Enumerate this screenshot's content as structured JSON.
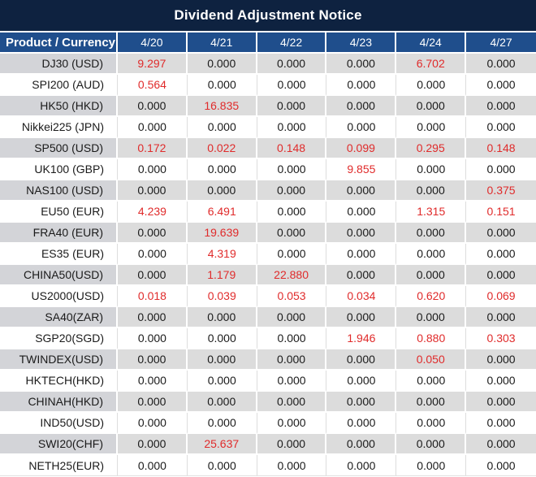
{
  "title": "Dividend Adjustment Notice",
  "colors": {
    "title_bar_bg": "#0e2240",
    "header_bg": "#1f4e8c",
    "header_text": "#ffffff",
    "alt_row_bg": "#dcdcdc",
    "alt_row_label_bg": "#d3d4d8",
    "white_row_bg": "#ffffff",
    "value_text": "#1a1a1a",
    "dividend_red": "#e02b2b",
    "gridline": "#dddddd"
  },
  "table": {
    "header": {
      "product_col": "Product / Currency",
      "dates": [
        "4/20",
        "4/21",
        "4/22",
        "4/23",
        "4/24",
        "4/27"
      ]
    },
    "zero_value": "0.000",
    "rows": [
      {
        "product": "DJ30 (USD)",
        "values": [
          "9.297",
          "0.000",
          "0.000",
          "0.000",
          "6.702",
          "0.000"
        ]
      },
      {
        "product": "SPI200 (AUD)",
        "values": [
          "0.564",
          "0.000",
          "0.000",
          "0.000",
          "0.000",
          "0.000"
        ]
      },
      {
        "product": "HK50 (HKD)",
        "values": [
          "0.000",
          "16.835",
          "0.000",
          "0.000",
          "0.000",
          "0.000"
        ]
      },
      {
        "product": "Nikkei225 (JPN)",
        "values": [
          "0.000",
          "0.000",
          "0.000",
          "0.000",
          "0.000",
          "0.000"
        ]
      },
      {
        "product": "SP500 (USD)",
        "values": [
          "0.172",
          "0.022",
          "0.148",
          "0.099",
          "0.295",
          "0.148"
        ]
      },
      {
        "product": "UK100 (GBP)",
        "values": [
          "0.000",
          "0.000",
          "0.000",
          "9.855",
          "0.000",
          "0.000"
        ]
      },
      {
        "product": "NAS100 (USD)",
        "values": [
          "0.000",
          "0.000",
          "0.000",
          "0.000",
          "0.000",
          "0.375"
        ]
      },
      {
        "product": "EU50 (EUR)",
        "values": [
          "4.239",
          "6.491",
          "0.000",
          "0.000",
          "1.315",
          "0.151"
        ]
      },
      {
        "product": "FRA40 (EUR)",
        "values": [
          "0.000",
          "19.639",
          "0.000",
          "0.000",
          "0.000",
          "0.000"
        ]
      },
      {
        "product": "ES35 (EUR)",
        "values": [
          "0.000",
          "4.319",
          "0.000",
          "0.000",
          "0.000",
          "0.000"
        ]
      },
      {
        "product": "CHINA50(USD)",
        "values": [
          "0.000",
          "1.179",
          "22.880",
          "0.000",
          "0.000",
          "0.000"
        ]
      },
      {
        "product": "US2000(USD)",
        "values": [
          "0.018",
          "0.039",
          "0.053",
          "0.034",
          "0.620",
          "0.069"
        ]
      },
      {
        "product": "SA40(ZAR)",
        "values": [
          "0.000",
          "0.000",
          "0.000",
          "0.000",
          "0.000",
          "0.000"
        ]
      },
      {
        "product": "SGP20(SGD)",
        "values": [
          "0.000",
          "0.000",
          "0.000",
          "1.946",
          "0.880",
          "0.303"
        ]
      },
      {
        "product": "TWINDEX(USD)",
        "values": [
          "0.000",
          "0.000",
          "0.000",
          "0.000",
          "0.050",
          "0.000"
        ]
      },
      {
        "product": "HKTECH(HKD)",
        "values": [
          "0.000",
          "0.000",
          "0.000",
          "0.000",
          "0.000",
          "0.000"
        ]
      },
      {
        "product": "CHINAH(HKD)",
        "values": [
          "0.000",
          "0.000",
          "0.000",
          "0.000",
          "0.000",
          "0.000"
        ]
      },
      {
        "product": "IND50(USD)",
        "values": [
          "0.000",
          "0.000",
          "0.000",
          "0.000",
          "0.000",
          "0.000"
        ]
      },
      {
        "product": "SWI20(CHF)",
        "values": [
          "0.000",
          "25.637",
          "0.000",
          "0.000",
          "0.000",
          "0.000"
        ]
      },
      {
        "product": "NETH25(EUR)",
        "values": [
          "0.000",
          "0.000",
          "0.000",
          "0.000",
          "0.000",
          "0.000"
        ]
      }
    ]
  }
}
